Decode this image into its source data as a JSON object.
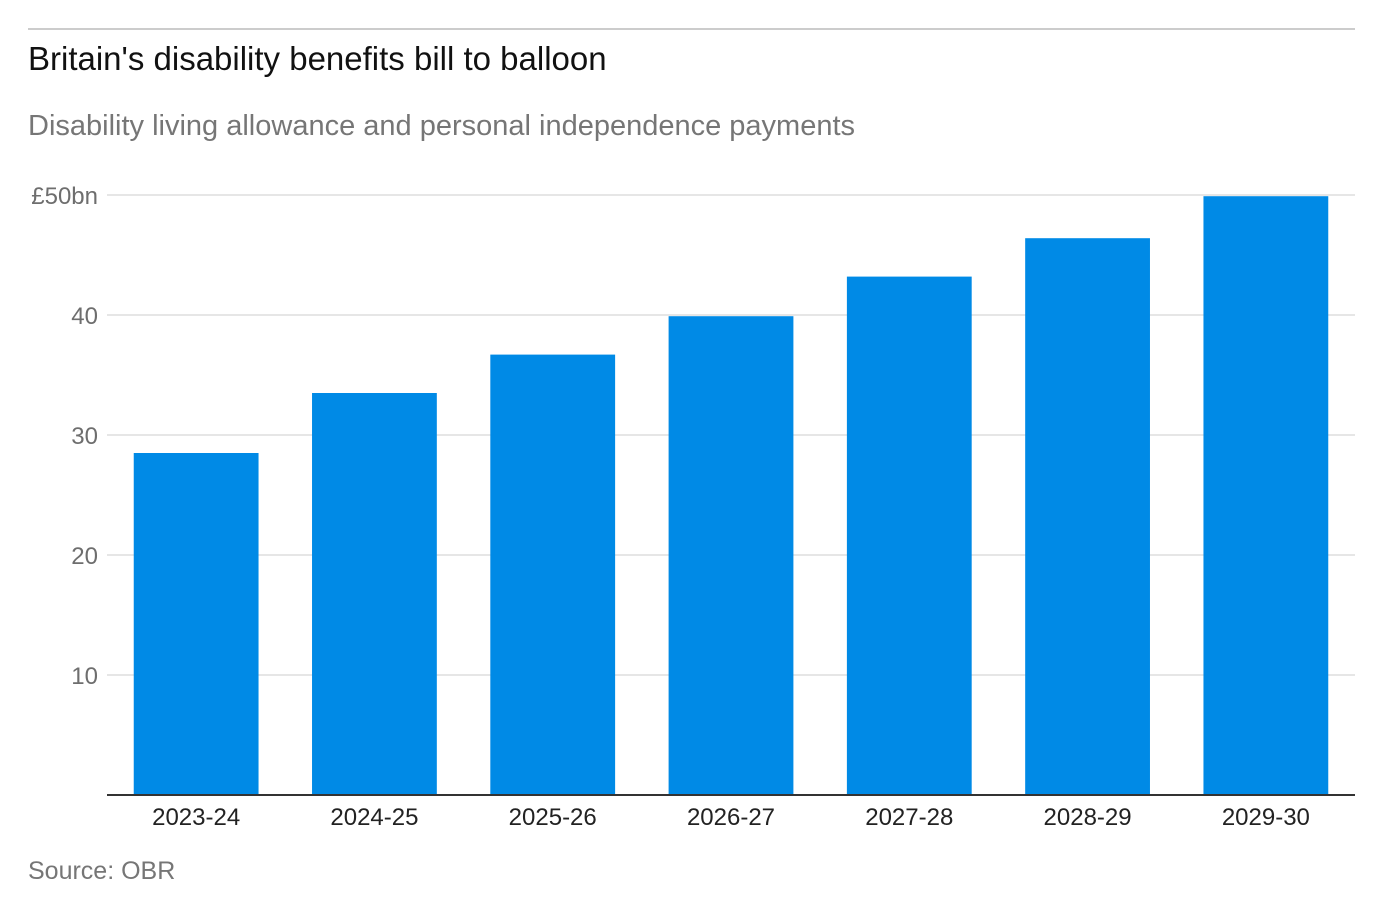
{
  "title": "Britain's disability benefits bill to balloon",
  "subtitle": "Disability living allowance and personal independence payments",
  "source": "Source: OBR",
  "colors": {
    "bar": "#008ae6",
    "grid": "#dddddd",
    "axis": "#333333"
  },
  "chart_data": {
    "type": "bar",
    "categories": [
      "2023-24",
      "2024-25",
      "2025-26",
      "2026-27",
      "2027-28",
      "2028-29",
      "2029-30"
    ],
    "values": [
      28.5,
      33.5,
      36.7,
      39.9,
      43.2,
      46.4,
      49.9
    ],
    "ylim": [
      0,
      50
    ],
    "yticks": [
      10,
      20,
      30,
      40,
      50
    ],
    "ytick_labels": [
      "10",
      "20",
      "30",
      "40",
      "£50bn"
    ],
    "xlabel": "",
    "ylabel": "",
    "grid": true
  }
}
